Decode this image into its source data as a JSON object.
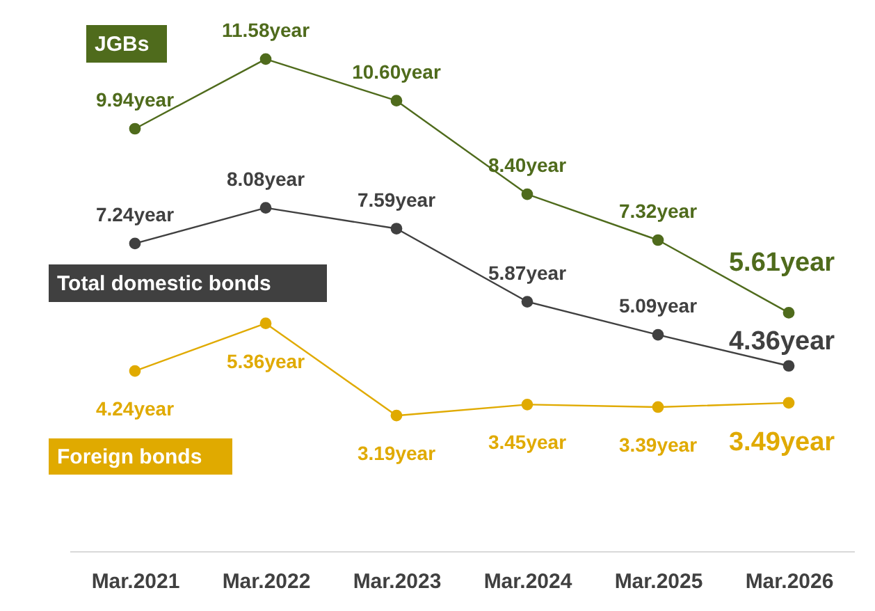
{
  "chart_data": {
    "type": "line",
    "categories": [
      "Mar.2021",
      "Mar.2022",
      "Mar.2023",
      "Mar.2024",
      "Mar.2025",
      "Mar.2026"
    ],
    "marker": "circle",
    "legend": false,
    "grid": false,
    "series": [
      {
        "name": "JGBs",
        "color": "#4f6b1c",
        "values": [
          9.94,
          11.58,
          10.6,
          8.4,
          7.32,
          5.61
        ],
        "value_labels": [
          "9.94year",
          "11.58year",
          "10.60year",
          "8.40year",
          "7.32year",
          "5.61year"
        ]
      },
      {
        "name": "Total domestic bonds",
        "color": "#404040",
        "values": [
          7.24,
          8.08,
          7.59,
          5.87,
          5.09,
          4.36
        ],
        "value_labels": [
          "7.24year",
          "8.08year",
          "7.59year",
          "5.87year",
          "5.09year",
          "4.36year"
        ]
      },
      {
        "name": "Foreign bonds",
        "color": "#e0aa00",
        "values": [
          4.24,
          5.36,
          3.19,
          3.45,
          3.39,
          3.49
        ],
        "value_labels": [
          "4.24year",
          "5.36year",
          "3.19year",
          "3.45year",
          "3.39year",
          "3.49year"
        ]
      }
    ]
  }
}
